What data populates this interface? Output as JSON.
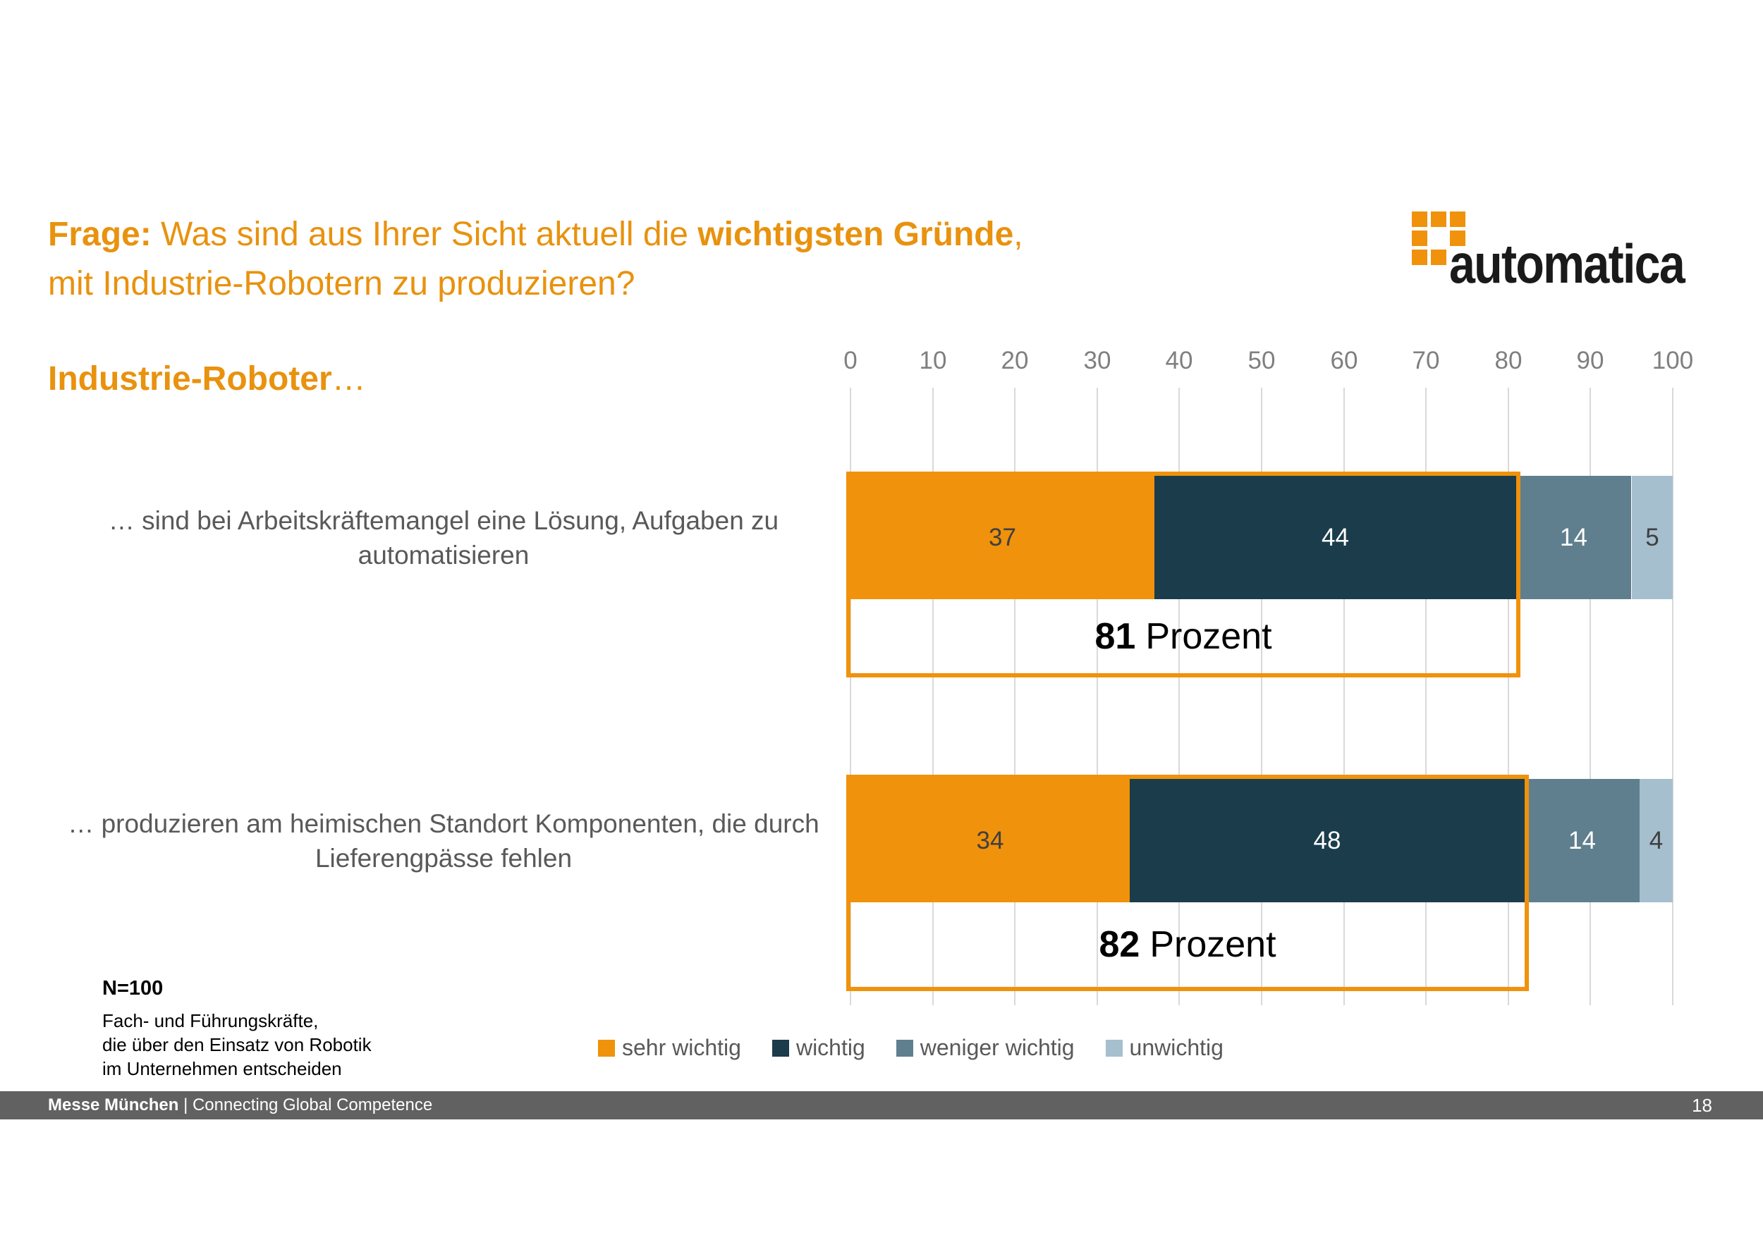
{
  "slide": {
    "title": {
      "parts": [
        {
          "text": "Frage: ",
          "bold": true
        },
        {
          "text": "Was sind aus Ihrer Sicht aktuell die ",
          "bold": false
        },
        {
          "text": "wichtigsten Gründe",
          "bold": true
        },
        {
          "text": ",",
          "bold": false
        }
      ],
      "line2": "mit Industrie-Robotern zu produzieren?",
      "color": "#E8920E"
    },
    "subtitle": {
      "bold": "Industrie-Roboter",
      "trail": "…"
    },
    "logo": {
      "text": "automatica",
      "square_color": "#F0920B",
      "text_color": "#1A1A1A",
      "grid": [
        [
          1,
          1,
          1
        ],
        [
          1,
          0,
          1
        ],
        [
          1,
          1,
          0
        ]
      ]
    },
    "note": {
      "headline": "N=100",
      "lines": [
        "Fach- und Führungskräfte,",
        "die über den Einsatz von Robotik",
        "im Unternehmen entscheiden"
      ]
    },
    "footer": {
      "brand": "Messe München",
      "separator": "|",
      "tagline": "Connecting Global Competence",
      "page": "18",
      "bg": "#616161"
    }
  },
  "chart_data": {
    "type": "bar",
    "stacked": true,
    "orientation": "horizontal",
    "x_axis": {
      "min": 0,
      "max": 100,
      "ticks": [
        0,
        10,
        20,
        30,
        40,
        50,
        60,
        70,
        80,
        90,
        100
      ],
      "position": "top",
      "grid": true
    },
    "categories": [
      "… sind bei Arbeitskräftemangel eine Lösung, Aufgaben zu automatisieren",
      "… produzieren am heimischen Standort Komponenten, die durch Lieferengpässe fehlen"
    ],
    "series": [
      {
        "name": "sehr wichtig",
        "color": "#F0920B",
        "label_color": "#3F3F3F",
        "values": [
          37,
          34
        ]
      },
      {
        "name": "wichtig",
        "color": "#1B3C4B",
        "label_color": "#FFFFFF",
        "values": [
          44,
          48
        ]
      },
      {
        "name": "weniger wichtig",
        "color": "#5F7F8E",
        "label_color": "#FFFFFF",
        "values": [
          14,
          14
        ]
      },
      {
        "name": "unwichtig",
        "color": "#A5BFCF",
        "label_color": "#3F3F3F",
        "values": [
          5,
          4
        ]
      }
    ],
    "annotations": [
      {
        "value": "81",
        "suffix": "Prozent",
        "span": 81
      },
      {
        "value": "82",
        "suffix": "Prozent",
        "span": 82
      }
    ],
    "legend": {
      "position": "bottom",
      "entries": [
        "sehr wichtig",
        "wichtig",
        "weniger wichtig",
        "unwichtig"
      ]
    },
    "colors": {
      "gridline": "#D9D9D9",
      "tick_text": "#7F7F7F",
      "category_text": "#595959",
      "legend_text": "#595959",
      "annotation_border": "#F0920B"
    }
  }
}
